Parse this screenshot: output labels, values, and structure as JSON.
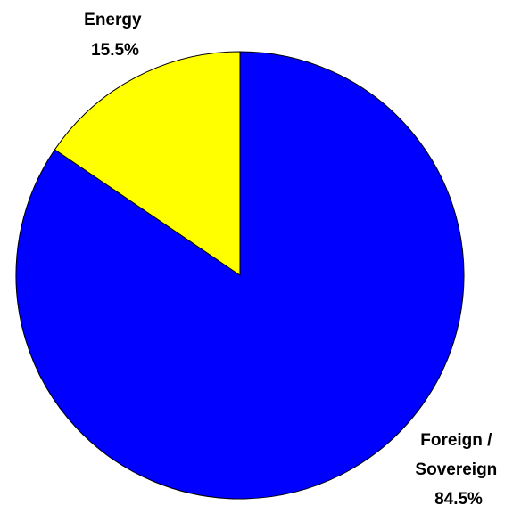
{
  "chart_data": {
    "type": "pie",
    "title": "",
    "start_angle_deg": 0,
    "direction": "clockwise",
    "slices": [
      {
        "label_lines": [
          "Foreign /",
          "Sovereign"
        ],
        "value_label": "84.5%",
        "value": 84.5,
        "color": "#0000ff"
      },
      {
        "label_lines": [
          "Energy"
        ],
        "value_label": "15.5%",
        "value": 15.5,
        "color": "#ffff00"
      }
    ],
    "border_color": "#000000"
  }
}
